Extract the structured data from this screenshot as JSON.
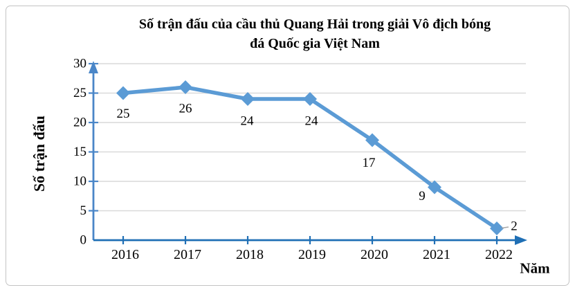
{
  "frame": {
    "border_color": "#C3C3C3"
  },
  "title": {
    "lines": [
      "Số trận đấu của cầu thủ Quang Hải trong giải Vô địch bóng",
      "đá Quốc gia Việt Nam"
    ]
  },
  "chart_data": {
    "type": "line",
    "title": "Số trận đấu của cầu thủ Quang Hải trong giải Vô địch bóng đá Quốc gia Việt Nam",
    "categories": [
      "2016",
      "2017",
      "2018",
      "2019",
      "2020",
      "2021",
      "2022"
    ],
    "series": [
      {
        "name": "Số trận đấu",
        "values": [
          25,
          26,
          24,
          24,
          17,
          9,
          2
        ]
      }
    ],
    "data_labels": [
      "25",
      "26",
      "24",
      "24",
      "17",
      "9",
      "2"
    ],
    "xlabel": "Năm",
    "ylabel": "Số trận đấu",
    "ylim": [
      0,
      30
    ],
    "yticks": [
      0,
      5,
      10,
      15,
      20,
      25,
      30
    ],
    "grid": true,
    "legend": "none",
    "marker": "diamond",
    "colors": {
      "series_line": "#5B9BD5",
      "marker_fill": "#5B9BD5",
      "y_axis": "#4A86C8",
      "x_axis": "#1F6FB5",
      "gridline": "#D9D9D9",
      "text": "#000000",
      "leader_line": "#A6A6A6"
    }
  }
}
